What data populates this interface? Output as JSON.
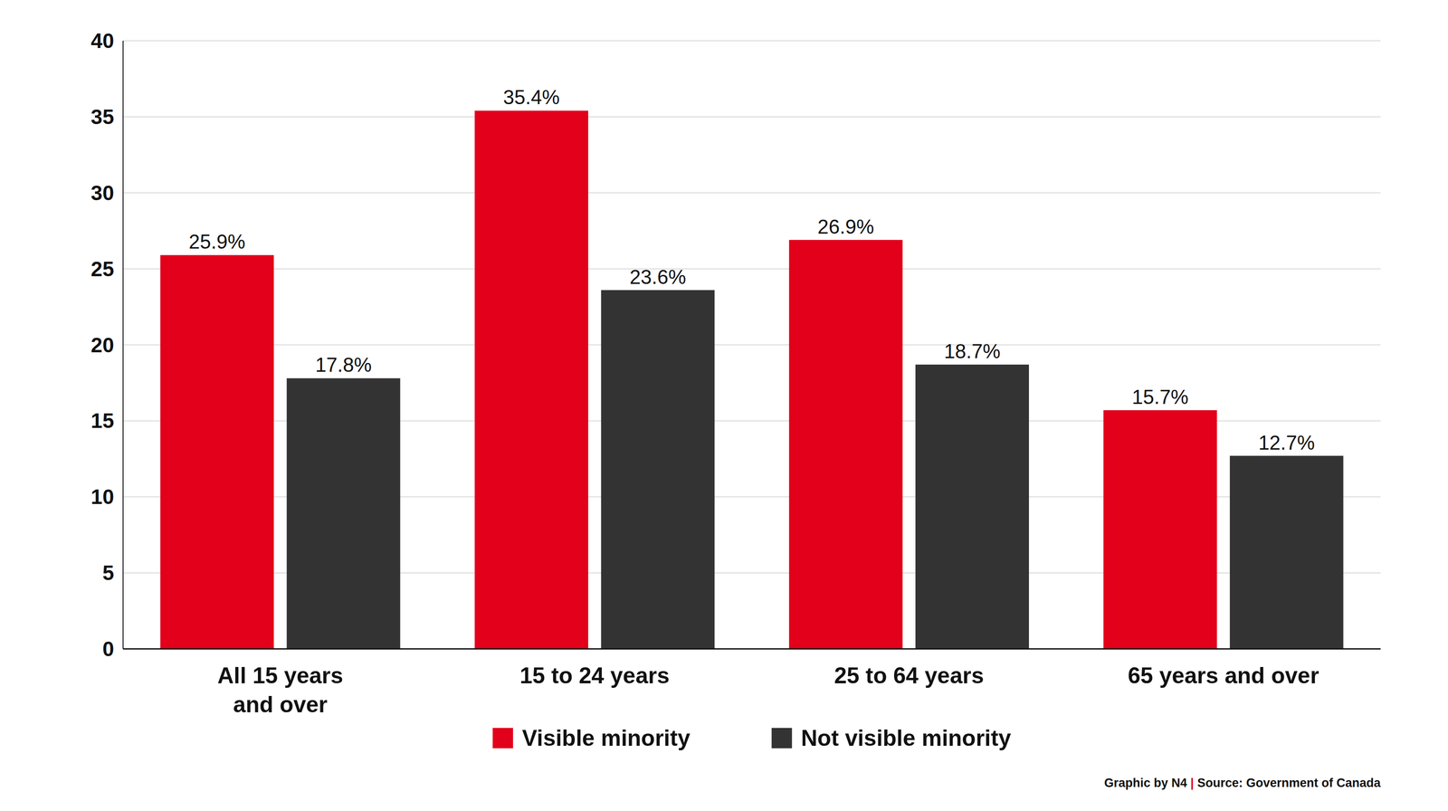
{
  "chart_data": {
    "type": "bar",
    "categories": [
      "All 15 years\nand over",
      "15 to 24 years",
      "25 to 64 years",
      "65 years and over"
    ],
    "series": [
      {
        "name": "Visible minority",
        "color": "#e2001a",
        "values": [
          25.9,
          35.4,
          26.9,
          15.7
        ],
        "value_labels": [
          "25.9%",
          "35.4%",
          "26.9%",
          "15.7%"
        ]
      },
      {
        "name": "Not visible minority",
        "color": "#333333",
        "values": [
          17.8,
          23.6,
          18.7,
          12.7
        ],
        "value_labels": [
          "17.8%",
          "23.6%",
          "18.7%",
          "12.7%"
        ]
      }
    ],
    "ylim": [
      0,
      40
    ],
    "yticks": [
      0,
      5,
      10,
      15,
      20,
      25,
      30,
      35,
      40
    ],
    "grid": true,
    "legend": "bottom",
    "data_labels": true,
    "source": [
      "Graphic by N4",
      "|",
      "Source: Government of Canada"
    ]
  }
}
